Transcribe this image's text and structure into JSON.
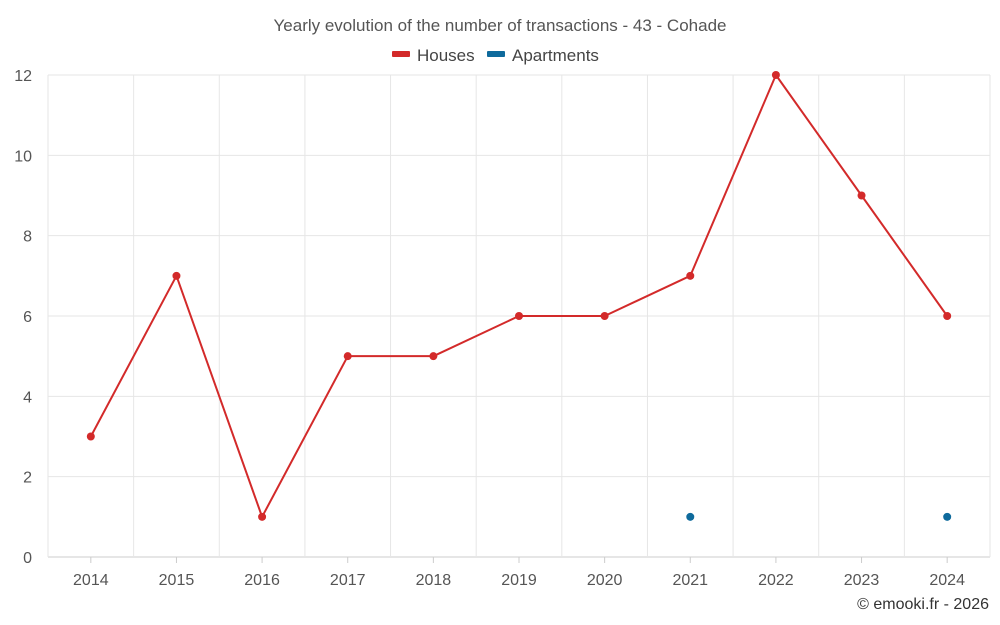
{
  "chart_data": {
    "type": "line",
    "title": "Yearly evolution of the number of transactions - 43 - Cohade",
    "categories": [
      "2014",
      "2015",
      "2016",
      "2017",
      "2018",
      "2019",
      "2020",
      "2021",
      "2022",
      "2023",
      "2024"
    ],
    "series": [
      {
        "name": "Houses",
        "color": "#d32a2a",
        "values": [
          3,
          7,
          1,
          5,
          5,
          6,
          6,
          7,
          12,
          9,
          6
        ]
      },
      {
        "name": "Apartments",
        "color": "#0e6a9c",
        "values": [
          null,
          null,
          null,
          null,
          null,
          null,
          null,
          1,
          null,
          null,
          1
        ]
      }
    ],
    "ylim": [
      0,
      12
    ],
    "yticks": [
      0,
      2,
      4,
      6,
      8,
      10,
      12
    ],
    "grid": true,
    "legend": "top-center",
    "xlabel": "",
    "ylabel": ""
  },
  "credit": "© emooki.fr - 2026"
}
